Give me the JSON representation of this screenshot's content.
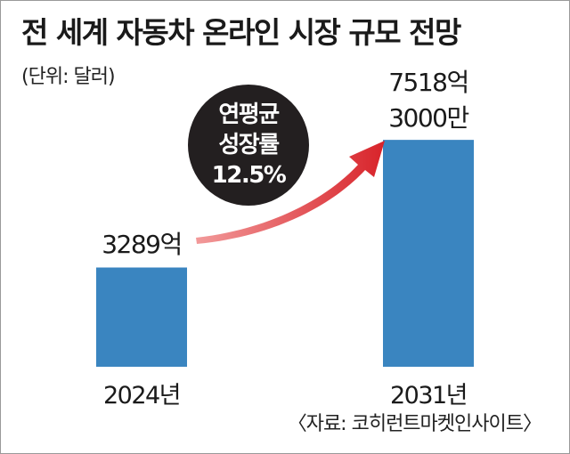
{
  "title": "전 세계 자동차 온라인 시장 규모 전망",
  "unit": "(단위: 달러)",
  "source": "〈자료: 코히런트마켓인사이트〉",
  "growth": {
    "line1": "연평균",
    "line2": "성장률",
    "rate": "12.5%"
  },
  "colors": {
    "bar": "#3a85c0",
    "arrow": "#d8232a",
    "bubble": "#231f20"
  },
  "chart_data": {
    "type": "bar",
    "categories": [
      "2024년",
      "2031년"
    ],
    "values": [
      3289,
      7518.3
    ],
    "value_labels": [
      [
        "3289억"
      ],
      [
        "7518억",
        "3000만"
      ]
    ],
    "unit": "억 달러",
    "annotation": "연평균 성장률 12.5%",
    "grid": false
  }
}
